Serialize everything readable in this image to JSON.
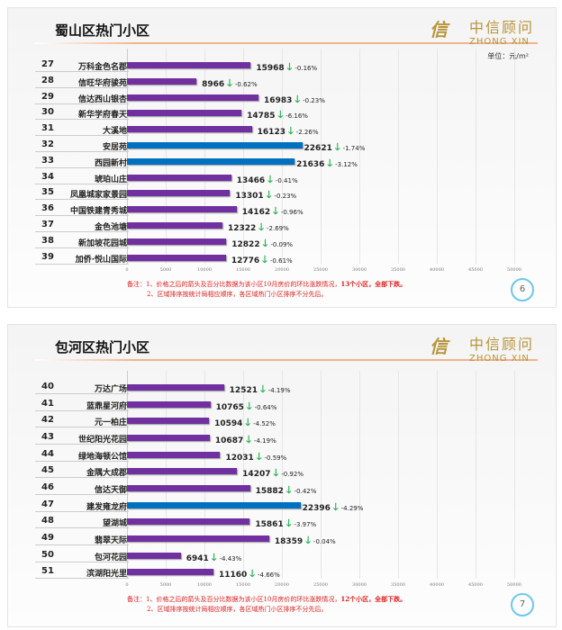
{
  "logo": {
    "cn": "中信顾问",
    "en": "ZHONG XIN"
  },
  "chart_data": [
    {
      "type": "bar",
      "orientation": "horizontal",
      "title": "蜀山区热门小区",
      "unit": "单位：元/m²",
      "xlim": [
        0,
        50000
      ],
      "ticks": [
        "0",
        "5000",
        "10000",
        "15000",
        "20000",
        "25000",
        "30000",
        "35000",
        "40000",
        "45000",
        "50000"
      ],
      "colors": {
        "default": "#7030a0",
        "highlight": "#0070c0",
        "down_arrow": "#22b14c"
      },
      "rows": [
        {
          "rank": "27",
          "name": "万科金色名郡",
          "value": 15968,
          "change": "-0.16%"
        },
        {
          "rank": "28",
          "name": "信旺华府骏苑",
          "value": 8966,
          "change": "-0.62%"
        },
        {
          "rank": "29",
          "name": "信达西山银杏",
          "value": 16983,
          "change": "-0.23%"
        },
        {
          "rank": "30",
          "name": "新华学府春天",
          "value": 14785,
          "change": "-6.16%"
        },
        {
          "rank": "31",
          "name": "大溪地",
          "value": 16123,
          "change": "-2.26%"
        },
        {
          "rank": "32",
          "name": "安居苑",
          "value": 22621,
          "change": "-1.74%",
          "highlight": true
        },
        {
          "rank": "33",
          "name": "西园新村",
          "value": 21636,
          "change": "-3.12%",
          "highlight": true
        },
        {
          "rank": "34",
          "name": "琥珀山庄",
          "value": 13466,
          "change": "-0.41%"
        },
        {
          "rank": "35",
          "name": "凤凰城家家景园",
          "value": 13301,
          "change": "-0.23%"
        },
        {
          "rank": "36",
          "name": "中国铁建青秀城",
          "value": 14162,
          "change": "-0.96%"
        },
        {
          "rank": "37",
          "name": "金色池塘",
          "value": 12322,
          "change": "-2.69%"
        },
        {
          "rank": "38",
          "name": "新加坡花园城",
          "value": 12822,
          "change": "-0.09%"
        },
        {
          "rank": "39",
          "name": "加侨·悦山国际",
          "value": 12776,
          "change": "-0.61%"
        }
      ],
      "note1_prefix": "备注：1、价格之后的箭头及百分比数据为该小区10月房价的环比涨跌情况，",
      "note1_bold": "13个小区，全部下跌。",
      "note2": "2、区域排序按统计局相应顺序，各区域热门小区排序不分先后。",
      "page": "6"
    },
    {
      "type": "bar",
      "orientation": "horizontal",
      "title": "包河区热门小区",
      "xlim": [
        0,
        50000
      ],
      "ticks": [
        "0",
        "5000",
        "10000",
        "15000",
        "20000",
        "25000",
        "30000",
        "35000",
        "40000",
        "45000",
        "50000"
      ],
      "colors": {
        "default": "#7030a0",
        "highlight": "#0070c0",
        "down_arrow": "#22b14c"
      },
      "rows": [
        {
          "rank": "40",
          "name": "万达广场",
          "value": 12521,
          "change": "-4.19%"
        },
        {
          "rank": "41",
          "name": "蓝鼎星河府",
          "value": 10765,
          "change": "-0.64%"
        },
        {
          "rank": "42",
          "name": "元一柏庄",
          "value": 10594,
          "change": "-4.52%"
        },
        {
          "rank": "43",
          "name": "世纪阳光花园",
          "value": 10687,
          "change": "-4.19%"
        },
        {
          "rank": "44",
          "name": "绿地海顿公馆",
          "value": 12031,
          "change": "-0.59%"
        },
        {
          "rank": "45",
          "name": "金隅大成郡",
          "value": 14207,
          "change": "-0.92%"
        },
        {
          "rank": "46",
          "name": "信达天御",
          "value": 15882,
          "change": "-0.42%"
        },
        {
          "rank": "47",
          "name": "建发雍龙府",
          "value": 22396,
          "change": "-4.29%",
          "highlight": true
        },
        {
          "rank": "48",
          "name": "望湖城",
          "value": 15861,
          "change": "-3.97%"
        },
        {
          "rank": "49",
          "name": "翡翠天际",
          "value": 18359,
          "change": "-0.04%"
        },
        {
          "rank": "50",
          "name": "包河花园",
          "value": 6941,
          "change": "-4.43%"
        },
        {
          "rank": "51",
          "name": "滨湖阳光里",
          "value": 11160,
          "change": "-4.66%"
        }
      ],
      "note1_prefix": "备注：1、价格之后的箭头及百分比数据为该小区10月房价的环比涨跌情况，",
      "note1_bold": "12个小区，全部下跌。",
      "note2": "2、区域排序按统计局相应顺序，各区域热门小区排序不分先后。",
      "page": "7"
    }
  ]
}
